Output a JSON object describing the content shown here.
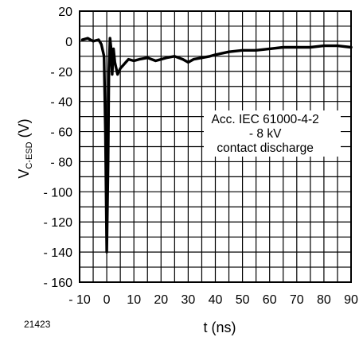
{
  "figure_id": "21423",
  "chart_data": {
    "type": "line",
    "xlabel": "t (ns)",
    "ylabel_main": "V",
    "ylabel_sub": "C-ESD",
    "ylabel_unit": "(V)",
    "xlim": [
      -10,
      90
    ],
    "ylim": [
      -160,
      20
    ],
    "x_ticks": [
      -10,
      0,
      10,
      20,
      30,
      40,
      50,
      60,
      70,
      80,
      90
    ],
    "x_tick_labels": [
      "- 10",
      "0",
      "10",
      "20",
      "30",
      "40",
      "50",
      "60",
      "70",
      "80",
      "90"
    ],
    "y_ticks": [
      20,
      0,
      -20,
      -40,
      -60,
      -80,
      -100,
      -120,
      -140,
      -160
    ],
    "y_tick_labels": [
      "20",
      "0",
      "- 20",
      "- 40",
      "- 60",
      "- 80",
      "- 100",
      "- 120",
      "- 140",
      "- 160"
    ],
    "grid": true,
    "grid_x_step": 5,
    "grid_y_step": 10,
    "annotation": [
      "Acc. IEC 61000-4-2",
      "- 8 kV",
      "contact discharge"
    ],
    "series": [
      {
        "color": "#000000",
        "x": [
          -9,
          -7,
          -5,
          -3,
          -2,
          -1,
          -0.5,
          0,
          0.5,
          0.8,
          1.2,
          1.6,
          2,
          2.5,
          3,
          4,
          5,
          6,
          7,
          8,
          10,
          12,
          15,
          18,
          20,
          22,
          25,
          28,
          30,
          32,
          35,
          38,
          40,
          45,
          50,
          55,
          60,
          65,
          70,
          75,
          80,
          85,
          90
        ],
        "y": [
          1,
          2,
          0,
          1,
          -2,
          -10,
          -60,
          -140,
          -80,
          -20,
          2,
          -5,
          -22,
          -5,
          -14,
          -22,
          -18,
          -16,
          -14,
          -12,
          -13,
          -12,
          -11,
          -13,
          -12,
          -11,
          -10,
          -12,
          -14,
          -12,
          -11,
          -10,
          -9,
          -7,
          -6,
          -6,
          -5,
          -4,
          -4,
          -4,
          -3,
          -3,
          -4
        ]
      }
    ]
  }
}
